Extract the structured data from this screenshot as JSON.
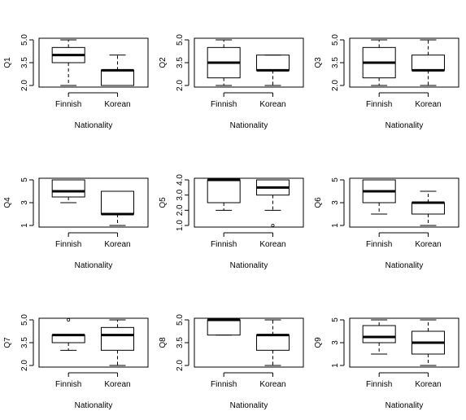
{
  "chart_data": [
    {
      "type": "boxplot",
      "ylabel": "Q1",
      "xlabel": "Nationality",
      "categories": [
        "Finnish",
        "Korean"
      ],
      "yticks": [
        "2.0",
        "3.5",
        "5.0"
      ],
      "ylim": [
        2,
        5
      ],
      "boxes": [
        {
          "min": 2,
          "q1": 3.5,
          "median": 4,
          "q3": 4.5,
          "max": 5,
          "outliers": []
        },
        {
          "min": 2,
          "q1": 2,
          "median": 3,
          "q3": 3,
          "max": 4,
          "outliers": []
        }
      ]
    },
    {
      "type": "boxplot",
      "ylabel": "Q2",
      "xlabel": "Nationality",
      "categories": [
        "Finnish",
        "Korean"
      ],
      "yticks": [
        "2.0",
        "3.5",
        "5.0"
      ],
      "ylim": [
        2,
        5
      ],
      "boxes": [
        {
          "min": 2,
          "q1": 2.5,
          "median": 3.5,
          "q3": 4.5,
          "max": 5,
          "outliers": []
        },
        {
          "min": 2,
          "q1": 3,
          "median": 3,
          "q3": 4,
          "max": 4,
          "outliers": []
        }
      ]
    },
    {
      "type": "boxplot",
      "ylabel": "Q3",
      "xlabel": "Nationality",
      "categories": [
        "Finnish",
        "Korean"
      ],
      "yticks": [
        "2.0",
        "3.5",
        "5.0"
      ],
      "ylim": [
        2,
        5
      ],
      "boxes": [
        {
          "min": 2,
          "q1": 2.5,
          "median": 3.5,
          "q3": 4.5,
          "max": 5,
          "outliers": []
        },
        {
          "min": 2,
          "q1": 3,
          "median": 3,
          "q3": 4,
          "max": 5,
          "outliers": []
        }
      ]
    },
    {
      "type": "boxplot",
      "ylabel": "Q4",
      "xlabel": "Nationality",
      "categories": [
        "Finnish",
        "Korean"
      ],
      "yticks": [
        "1",
        "3",
        "5"
      ],
      "ylim": [
        1,
        5
      ],
      "boxes": [
        {
          "min": 3,
          "q1": 3.5,
          "median": 4,
          "q3": 5,
          "max": 5,
          "outliers": []
        },
        {
          "min": 1,
          "q1": 2,
          "median": 2,
          "q3": 4,
          "max": 4,
          "outliers": []
        }
      ]
    },
    {
      "type": "boxplot",
      "ylabel": "Q5",
      "xlabel": "Nationality",
      "categories": [
        "Finnish",
        "Korean"
      ],
      "yticks": [
        "1.0",
        "2.0",
        "3.0",
        "4.0"
      ],
      "ylim": [
        1,
        4
      ],
      "boxes": [
        {
          "min": 2,
          "q1": 2.5,
          "median": 4,
          "q3": 4,
          "max": 4,
          "outliers": []
        },
        {
          "min": 2,
          "q1": 3,
          "median": 3.5,
          "q3": 4,
          "max": 4,
          "outliers": [
            1
          ]
        }
      ]
    },
    {
      "type": "boxplot",
      "ylabel": "Q6",
      "xlabel": "Nationality",
      "categories": [
        "Finnish",
        "Korean"
      ],
      "yticks": [
        "1",
        "3",
        "5"
      ],
      "ylim": [
        1,
        5
      ],
      "boxes": [
        {
          "min": 2,
          "q1": 3,
          "median": 4,
          "q3": 5,
          "max": 5,
          "outliers": []
        },
        {
          "min": 1,
          "q1": 2,
          "median": 3,
          "q3": 3,
          "max": 4,
          "outliers": []
        }
      ]
    },
    {
      "type": "boxplot",
      "ylabel": "Q7",
      "xlabel": "Nationality",
      "categories": [
        "Finnish",
        "Korean"
      ],
      "yticks": [
        "2.0",
        "3.5",
        "5.0"
      ],
      "ylim": [
        2,
        5
      ],
      "boxes": [
        {
          "min": 3,
          "q1": 3.5,
          "median": 4,
          "q3": 4,
          "max": 4,
          "outliers": [
            5
          ]
        },
        {
          "min": 2,
          "q1": 3,
          "median": 4,
          "q3": 4.5,
          "max": 5,
          "outliers": []
        }
      ]
    },
    {
      "type": "boxplot",
      "ylabel": "Q8",
      "xlabel": "Nationality",
      "categories": [
        "Finnish",
        "Korean"
      ],
      "yticks": [
        "2.0",
        "3.5",
        "5.0"
      ],
      "ylim": [
        2,
        5
      ],
      "boxes": [
        {
          "min": 4,
          "q1": 4,
          "median": 5,
          "q3": 5,
          "max": 5,
          "outliers": []
        },
        {
          "min": 2,
          "q1": 3,
          "median": 4,
          "q3": 4,
          "max": 5,
          "outliers": []
        }
      ]
    },
    {
      "type": "boxplot",
      "ylabel": "Q9",
      "xlabel": "Nationality",
      "categories": [
        "Finnish",
        "Korean"
      ],
      "yticks": [
        "1",
        "3",
        "5"
      ],
      "ylim": [
        1,
        5
      ],
      "boxes": [
        {
          "min": 2,
          "q1": 3,
          "median": 3.5,
          "q3": 4.5,
          "max": 5,
          "outliers": []
        },
        {
          "min": 1,
          "q1": 2,
          "median": 3,
          "q3": 4,
          "max": 5,
          "outliers": []
        }
      ]
    }
  ]
}
